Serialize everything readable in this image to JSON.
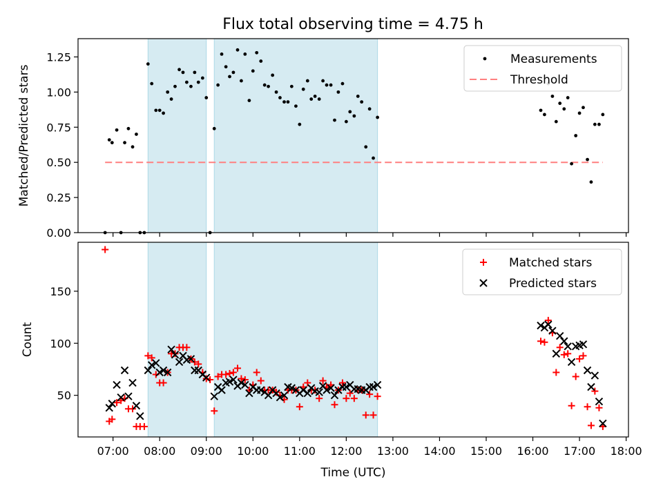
{
  "figure": {
    "title": "Flux total observing time = 4.75 h"
  },
  "colors": {
    "measurement": "#000000",
    "threshold": "#ff7f7f",
    "matched": "#ff0000",
    "predicted": "#000000",
    "shade": "#add8e6"
  },
  "chart_data": [
    {
      "type": "scatter",
      "panel": "top",
      "ylabel": "Matched/Predicted stars",
      "ylim": [
        0,
        1.38
      ],
      "yticks": [
        "0.00",
        "0.25",
        "0.50",
        "0.75",
        "1.00",
        "1.25"
      ],
      "ytick_values": [
        0,
        0.25,
        0.5,
        0.75,
        1.0,
        1.25
      ],
      "legend": {
        "position": "top-right",
        "entries": [
          "Measurements",
          "Threshold"
        ]
      },
      "shaded_intervals_hours": [
        [
          7.75,
          9.0
        ],
        [
          9.17,
          12.67
        ]
      ],
      "threshold": {
        "name": "Threshold",
        "y": 0.5,
        "x_range_hours": [
          6.83,
          17.5
        ]
      },
      "series": [
        {
          "name": "Measurements",
          "points_hours": [
            [
              6.83,
              0.0
            ],
            [
              6.92,
              0.66
            ],
            [
              6.98,
              0.64
            ],
            [
              7.08,
              0.73
            ],
            [
              7.17,
              0.0
            ],
            [
              7.25,
              0.64
            ],
            [
              7.33,
              0.74
            ],
            [
              7.42,
              0.61
            ],
            [
              7.5,
              0.7
            ],
            [
              7.58,
              0.0
            ],
            [
              7.67,
              0.0
            ],
            [
              7.75,
              1.2
            ],
            [
              7.83,
              1.06
            ],
            [
              7.92,
              0.87
            ],
            [
              8.0,
              0.87
            ],
            [
              8.08,
              0.85
            ],
            [
              8.17,
              1.0
            ],
            [
              8.25,
              0.95
            ],
            [
              8.33,
              1.04
            ],
            [
              8.42,
              1.16
            ],
            [
              8.5,
              1.14
            ],
            [
              8.58,
              1.07
            ],
            [
              8.67,
              1.04
            ],
            [
              8.75,
              1.14
            ],
            [
              8.83,
              1.07
            ],
            [
              8.92,
              1.1
            ],
            [
              9.0,
              0.96
            ],
            [
              9.08,
              0.0
            ],
            [
              9.17,
              0.74
            ],
            [
              9.25,
              1.05
            ],
            [
              9.33,
              1.27
            ],
            [
              9.42,
              1.18
            ],
            [
              9.5,
              1.11
            ],
            [
              9.58,
              1.14
            ],
            [
              9.67,
              1.3
            ],
            [
              9.75,
              1.08
            ],
            [
              9.83,
              1.27
            ],
            [
              9.92,
              0.94
            ],
            [
              10.0,
              1.15
            ],
            [
              10.08,
              1.28
            ],
            [
              10.17,
              1.22
            ],
            [
              10.25,
              1.05
            ],
            [
              10.33,
              1.04
            ],
            [
              10.42,
              1.12
            ],
            [
              10.5,
              1.0
            ],
            [
              10.58,
              0.96
            ],
            [
              10.67,
              0.93
            ],
            [
              10.75,
              0.93
            ],
            [
              10.83,
              1.04
            ],
            [
              10.92,
              0.9
            ],
            [
              11.0,
              0.77
            ],
            [
              11.08,
              1.02
            ],
            [
              11.17,
              1.08
            ],
            [
              11.25,
              0.95
            ],
            [
              11.33,
              0.97
            ],
            [
              11.42,
              0.95
            ],
            [
              11.5,
              1.08
            ],
            [
              11.58,
              1.05
            ],
            [
              11.67,
              1.05
            ],
            [
              11.75,
              0.8
            ],
            [
              11.83,
              1.0
            ],
            [
              11.92,
              1.06
            ],
            [
              12.0,
              0.79
            ],
            [
              12.08,
              0.86
            ],
            [
              12.17,
              0.83
            ],
            [
              12.25,
              0.97
            ],
            [
              12.33,
              0.93
            ],
            [
              12.42,
              0.61
            ],
            [
              12.5,
              0.88
            ],
            [
              12.58,
              0.53
            ],
            [
              12.67,
              0.82
            ],
            [
              16.17,
              0.87
            ],
            [
              16.25,
              0.84
            ],
            [
              16.33,
              1.06
            ],
            [
              16.42,
              0.97
            ],
            [
              16.5,
              0.79
            ],
            [
              16.58,
              0.92
            ],
            [
              16.67,
              0.88
            ],
            [
              16.75,
              0.96
            ],
            [
              16.83,
              0.49
            ],
            [
              16.92,
              0.69
            ],
            [
              17.0,
              0.85
            ],
            [
              17.08,
              0.89
            ],
            [
              17.17,
              0.52
            ],
            [
              17.25,
              0.36
            ],
            [
              17.33,
              0.77
            ],
            [
              17.42,
              0.77
            ],
            [
              17.5,
              0.84
            ]
          ]
        }
      ]
    },
    {
      "type": "scatter",
      "panel": "bottom",
      "xlabel": "Time (UTC)",
      "ylabel": "Count",
      "ylim": [
        10,
        197
      ],
      "xlim_hours": [
        6.25,
        18.05
      ],
      "yticks": [
        "50",
        "100",
        "150"
      ],
      "ytick_values": [
        50,
        100,
        150
      ],
      "xticks": [
        "07:00",
        "08:00",
        "09:00",
        "10:00",
        "11:00",
        "12:00",
        "13:00",
        "14:00",
        "15:00",
        "16:00",
        "17:00",
        "18:00"
      ],
      "xtick_values_hours": [
        7,
        8,
        9,
        10,
        11,
        12,
        13,
        14,
        15,
        16,
        17,
        18
      ],
      "legend": {
        "position": "top-right",
        "entries": [
          "Matched stars",
          "Predicted stars"
        ]
      },
      "shaded_intervals_hours": [
        [
          7.75,
          9.0
        ],
        [
          9.17,
          12.67
        ]
      ],
      "series": [
        {
          "name": "Matched stars",
          "points_hours": [
            [
              6.83,
              190
            ],
            [
              6.92,
              25
            ],
            [
              6.98,
              27
            ],
            [
              7.08,
              43
            ],
            [
              7.17,
              45
            ],
            [
              7.25,
              47
            ],
            [
              7.33,
              37
            ],
            [
              7.42,
              37
            ],
            [
              7.5,
              20
            ],
            [
              7.58,
              20
            ],
            [
              7.67,
              20
            ],
            [
              7.75,
              88
            ],
            [
              7.83,
              86
            ],
            [
              7.92,
              70
            ],
            [
              8.0,
              62
            ],
            [
              8.08,
              62
            ],
            [
              8.17,
              72
            ],
            [
              8.25,
              90
            ],
            [
              8.33,
              90
            ],
            [
              8.42,
              96
            ],
            [
              8.5,
              96
            ],
            [
              8.58,
              96
            ],
            [
              8.67,
              85
            ],
            [
              8.75,
              82
            ],
            [
              8.83,
              80
            ],
            [
              8.92,
              72
            ],
            [
              9.0,
              66
            ],
            [
              9.08,
              65
            ],
            [
              9.17,
              35
            ],
            [
              9.25,
              68
            ],
            [
              9.33,
              70
            ],
            [
              9.42,
              70
            ],
            [
              9.5,
              71
            ],
            [
              9.58,
              72
            ],
            [
              9.67,
              76
            ],
            [
              9.75,
              66
            ],
            [
              9.83,
              65
            ],
            [
              9.92,
              55
            ],
            [
              10.0,
              60
            ],
            [
              10.08,
              72
            ],
            [
              10.17,
              64
            ],
            [
              10.25,
              55
            ],
            [
              10.33,
              55
            ],
            [
              10.42,
              55
            ],
            [
              10.5,
              53
            ],
            [
              10.58,
              50
            ],
            [
              10.67,
              46
            ],
            [
              10.75,
              55
            ],
            [
              10.83,
              55
            ],
            [
              10.92,
              55
            ],
            [
              11.0,
              39
            ],
            [
              11.08,
              58
            ],
            [
              11.17,
              62
            ],
            [
              11.25,
              55
            ],
            [
              11.33,
              55
            ],
            [
              11.42,
              47
            ],
            [
              11.5,
              64
            ],
            [
              11.58,
              58
            ],
            [
              11.67,
              60
            ],
            [
              11.75,
              41
            ],
            [
              11.83,
              55
            ],
            [
              11.92,
              62
            ],
            [
              12.0,
              47
            ],
            [
              12.08,
              52
            ],
            [
              12.17,
              47
            ],
            [
              12.25,
              55
            ],
            [
              12.33,
              55
            ],
            [
              12.42,
              31
            ],
            [
              12.5,
              51
            ],
            [
              12.58,
              31
            ],
            [
              12.67,
              49
            ],
            [
              16.17,
              102
            ],
            [
              16.25,
              101
            ],
            [
              16.33,
              122
            ],
            [
              16.42,
              110
            ],
            [
              16.5,
              72
            ],
            [
              16.58,
              96
            ],
            [
              16.67,
              89
            ],
            [
              16.75,
              90
            ],
            [
              16.83,
              40
            ],
            [
              16.92,
              68
            ],
            [
              17.0,
              85
            ],
            [
              17.08,
              88
            ],
            [
              17.17,
              39
            ],
            [
              17.25,
              21
            ],
            [
              17.33,
              54
            ],
            [
              17.42,
              38
            ],
            [
              17.5,
              20
            ]
          ]
        },
        {
          "name": "Predicted stars",
          "points_hours": [
            [
              6.92,
              38
            ],
            [
              6.98,
              42
            ],
            [
              7.08,
              60
            ],
            [
              7.17,
              48
            ],
            [
              7.25,
              74
            ],
            [
              7.33,
              49
            ],
            [
              7.42,
              62
            ],
            [
              7.5,
              40
            ],
            [
              7.58,
              30
            ],
            [
              7.75,
              74
            ],
            [
              7.83,
              79
            ],
            [
              7.92,
              81
            ],
            [
              8.0,
              72
            ],
            [
              8.08,
              74
            ],
            [
              8.17,
              72
            ],
            [
              8.25,
              94
            ],
            [
              8.33,
              89
            ],
            [
              8.42,
              82
            ],
            [
              8.5,
              88
            ],
            [
              8.58,
              84
            ],
            [
              8.67,
              85
            ],
            [
              8.75,
              74
            ],
            [
              8.83,
              74
            ],
            [
              8.92,
              70
            ],
            [
              9.0,
              67
            ],
            [
              9.17,
              49
            ],
            [
              9.25,
              58
            ],
            [
              9.33,
              55
            ],
            [
              9.42,
              62
            ],
            [
              9.5,
              63
            ],
            [
              9.58,
              65
            ],
            [
              9.67,
              59
            ],
            [
              9.75,
              62
            ],
            [
              9.83,
              60
            ],
            [
              9.92,
              52
            ],
            [
              10.0,
              58
            ],
            [
              10.08,
              55
            ],
            [
              10.17,
              55
            ],
            [
              10.25,
              53
            ],
            [
              10.33,
              50
            ],
            [
              10.42,
              55
            ],
            [
              10.5,
              52
            ],
            [
              10.58,
              48
            ],
            [
              10.67,
              50
            ],
            [
              10.75,
              58
            ],
            [
              10.83,
              57
            ],
            [
              10.92,
              55
            ],
            [
              11.0,
              52
            ],
            [
              11.08,
              55
            ],
            [
              11.17,
              52
            ],
            [
              11.25,
              57
            ],
            [
              11.33,
              54
            ],
            [
              11.42,
              53
            ],
            [
              11.5,
              59
            ],
            [
              11.58,
              55
            ],
            [
              11.67,
              57
            ],
            [
              11.75,
              50
            ],
            [
              11.83,
              55
            ],
            [
              11.92,
              58
            ],
            [
              12.0,
              58
            ],
            [
              12.08,
              60
            ],
            [
              12.17,
              56
            ],
            [
              12.25,
              56
            ],
            [
              12.33,
              55
            ],
            [
              12.42,
              55
            ],
            [
              12.5,
              58
            ],
            [
              12.58,
              58
            ],
            [
              12.67,
              60
            ],
            [
              16.17,
              117
            ],
            [
              16.25,
              115
            ],
            [
              16.33,
              118
            ],
            [
              16.42,
              112
            ],
            [
              16.5,
              90
            ],
            [
              16.58,
              107
            ],
            [
              16.67,
              102
            ],
            [
              16.75,
              97
            ],
            [
              16.83,
              82
            ],
            [
              16.92,
              97
            ],
            [
              17.0,
              98
            ],
            [
              17.08,
              99
            ],
            [
              17.17,
              74
            ],
            [
              17.25,
              58
            ],
            [
              17.33,
              69
            ],
            [
              17.42,
              44
            ],
            [
              17.5,
              23
            ]
          ]
        }
      ]
    }
  ]
}
